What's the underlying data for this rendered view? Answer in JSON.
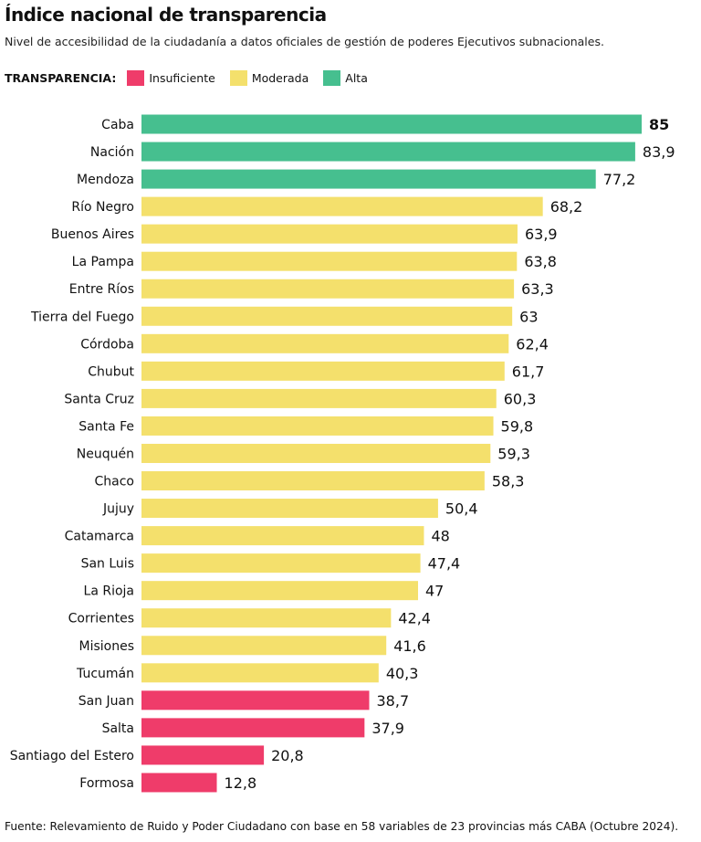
{
  "title": "Índice nacional de transparencia",
  "subtitle": "Nivel de accesibilidad de la ciudadanía a datos oficiales de gestión de poderes Ejecutivos subnacionales.",
  "legend": {
    "label": "TRANSPARENCIA:",
    "items": [
      {
        "name": "Insuficiente",
        "color": "#ef3c6a"
      },
      {
        "name": "Moderada",
        "color": "#f4e06c"
      },
      {
        "name": "Alta",
        "color": "#46bf8f"
      }
    ]
  },
  "source": "Fuente: Relevamiento de Ruido y Poder Ciudadano con base en 58 variables de 23 provincias más CABA (Octubre 2024).",
  "chart_data": {
    "type": "bar",
    "orientation": "horizontal",
    "xlim": [
      0,
      85
    ],
    "grid": false,
    "categories": [
      "Caba",
      "Nación",
      "Mendoza",
      "Río Negro",
      "Buenos Aires",
      "La Pampa",
      "Entre Ríos",
      "Tierra del Fuego",
      "Córdoba",
      "Chubut",
      "Santa Cruz",
      "Santa Fe",
      "Neuquén",
      "Chaco",
      "Jujuy",
      "Catamarca",
      "San Luis",
      "La Rioja",
      "Corrientes",
      "Misiones",
      "Tucumán",
      "San Juan",
      "Salta",
      "Santiago del Estero",
      "Formosa"
    ],
    "values": [
      85,
      83.9,
      77.2,
      68.2,
      63.9,
      63.8,
      63.3,
      63,
      62.4,
      61.7,
      60.3,
      59.8,
      59.3,
      58.3,
      50.4,
      48,
      47.4,
      47,
      42.4,
      41.6,
      40.3,
      38.7,
      37.9,
      20.8,
      12.8
    ],
    "labels": [
      "85",
      "83,9",
      "77,2",
      "68,2",
      "63,9",
      "63,8",
      "63,3",
      "63",
      "62,4",
      "61,7",
      "60,3",
      "59,8",
      "59,3",
      "58,3",
      "50,4",
      "48",
      "47,4",
      "47",
      "42,4",
      "41,6",
      "40,3",
      "38,7",
      "37,9",
      "20,8",
      "12,8"
    ],
    "levels": [
      "Alta",
      "Alta",
      "Alta",
      "Moderada",
      "Moderada",
      "Moderada",
      "Moderada",
      "Moderada",
      "Moderada",
      "Moderada",
      "Moderada",
      "Moderada",
      "Moderada",
      "Moderada",
      "Moderada",
      "Moderada",
      "Moderada",
      "Moderada",
      "Moderada",
      "Moderada",
      "Moderada",
      "Insuficiente",
      "Insuficiente",
      "Insuficiente",
      "Insuficiente"
    ]
  }
}
